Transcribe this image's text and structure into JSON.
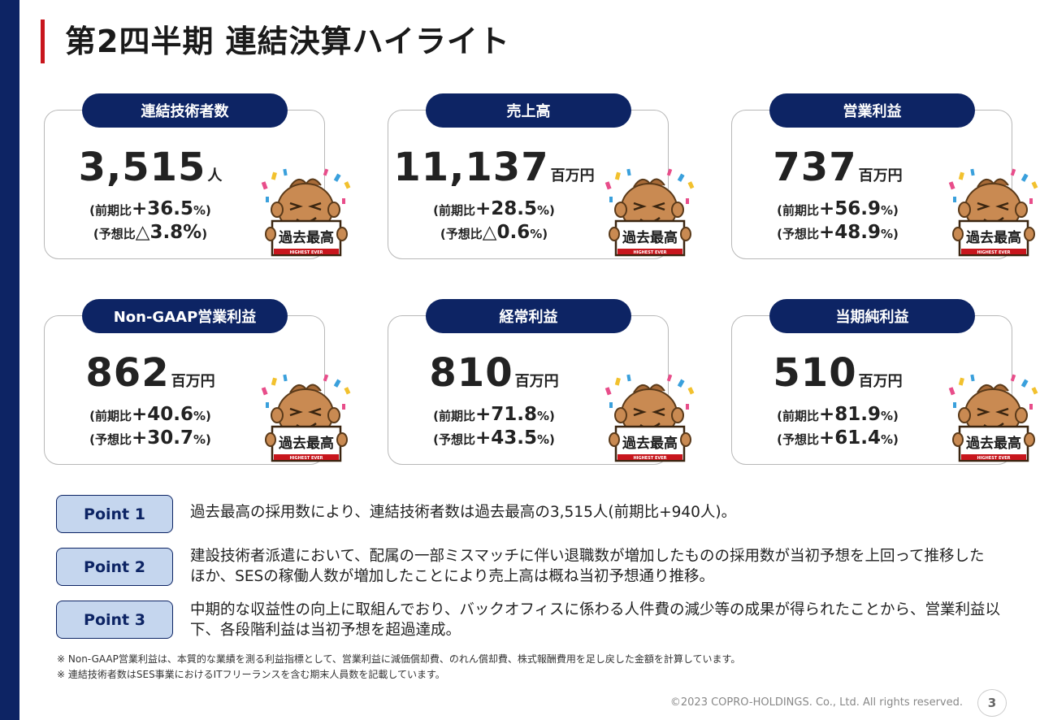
{
  "slide": {
    "title": "第2四半期 連結決算ハイライト"
  },
  "cards": [
    {
      "label": "連結技術者数",
      "value": "3,515",
      "unit": "人",
      "line1_prefix": "(前期比",
      "line1_value": "+36.5",
      "line1_suffix": "%)",
      "line2_prefix": "(予想比",
      "line2_value": "△3.8%",
      "line2_suffix": ")",
      "badge": "過去最高",
      "badge_sub": "HIGHEST EVER"
    },
    {
      "label": "売上高",
      "value": "11,137",
      "unit": "百万円",
      "line1_prefix": "(前期比",
      "line1_value": "+28.5",
      "line1_suffix": "%)",
      "line2_prefix": "(予想比",
      "line2_value": "△0.6",
      "line2_suffix": "%)",
      "badge": "過去最高",
      "badge_sub": "HIGHEST EVER"
    },
    {
      "label": "営業利益",
      "value": "737",
      "unit": "百万円",
      "line1_prefix": "(前期比",
      "line1_value": "+56.9",
      "line1_suffix": "%)",
      "line2_prefix": "(予想比",
      "line2_value": "+48.9",
      "line2_suffix": "%)",
      "badge": "過去最高",
      "badge_sub": "HIGHEST EVER"
    },
    {
      "label": "Non-GAAP営業利益",
      "value": "862",
      "unit": "百万円",
      "line1_prefix": "(前期比",
      "line1_value": "+40.6",
      "line1_suffix": "%)",
      "line2_prefix": "(予想比",
      "line2_value": "+30.7",
      "line2_suffix": "%)",
      "badge": "過去最高",
      "badge_sub": "HIGHEST EVER"
    },
    {
      "label": "経常利益",
      "value": "810",
      "unit": "百万円",
      "line1_prefix": "(前期比",
      "line1_value": "+71.8",
      "line1_suffix": "%)",
      "line2_prefix": "(予想比",
      "line2_value": "+43.5",
      "line2_suffix": "%)",
      "badge": "過去最高",
      "badge_sub": "HIGHEST EVER"
    },
    {
      "label": "当期純利益",
      "value": "510",
      "unit": "百万円",
      "line1_prefix": "(前期比",
      "line1_value": "+81.9",
      "line1_suffix": "%)",
      "line2_prefix": "(予想比",
      "line2_value": "+61.4",
      "line2_suffix": "%)",
      "badge": "過去最高",
      "badge_sub": "HIGHEST EVER"
    }
  ],
  "points": [
    {
      "label": "Point 1",
      "text": "過去最高の採用数により、連結技術者数は過去最高の3,515人(前期比+940人)。"
    },
    {
      "label": "Point 2",
      "text": "建設技術者派遣において、配属の一部ミスマッチに伴い退職数が増加したものの採用数が当初予想を上回って推移したほか、SESの稼働人数が増加したことにより売上高は概ね当初予想通り推移。"
    },
    {
      "label": "Point 3",
      "text": "中期的な収益性の向上に取組んでおり、バックオフィスに係わる人件費の減少等の成果が得られたことから、営業利益以下、各段階利益は当初予想を超過達成。"
    }
  ],
  "notes": [
    "※ Non-GAAP営業利益は、本質的な業績を測る利益指標として、営業利益に減価償却費、のれん償却費、株式報酬費用を足し戻した金額を計算しています。",
    "※ 連結技術者数はSES事業におけるITフリーランスを含む期末人員数を記載しています。"
  ],
  "footer": {
    "copyright": "©2023 COPRO-HOLDINGS. Co., Ltd. All rights reserved.",
    "page": "3"
  },
  "colors": {
    "navy": "#0d2464",
    "accent_red": "#c8161d",
    "point_fill": "#c5d6ee"
  }
}
